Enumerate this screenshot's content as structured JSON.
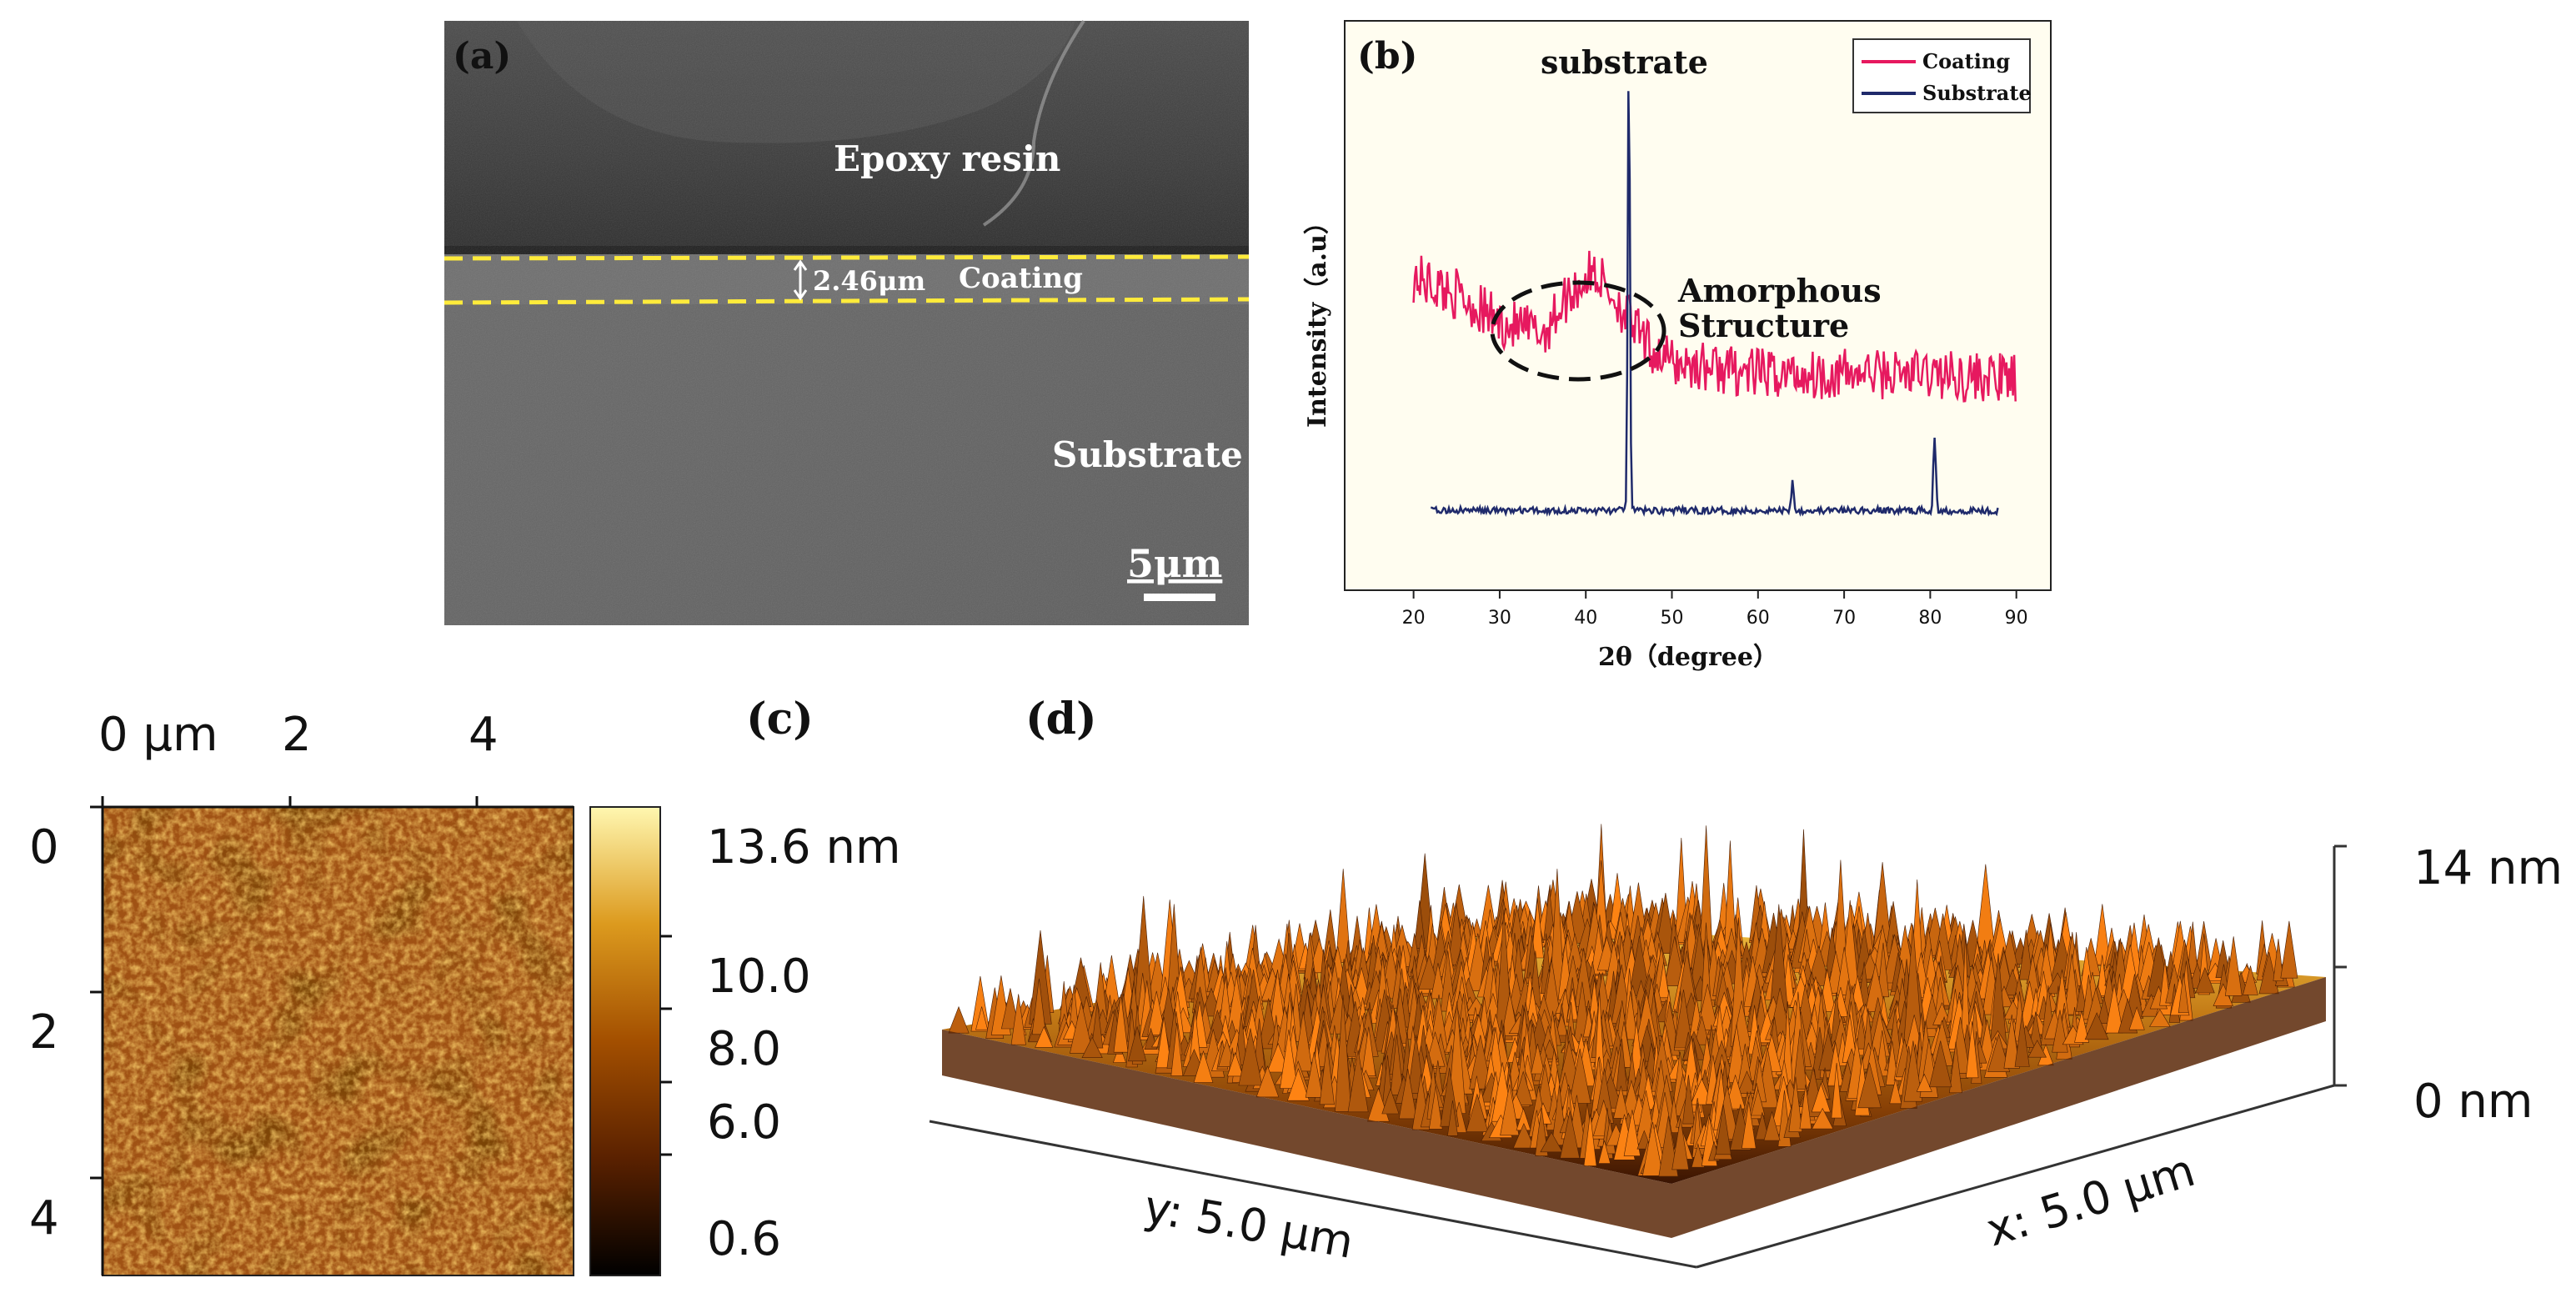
{
  "panel_a": {
    "label": "(a)",
    "epoxy_label": "Epoxy resin",
    "thickness_label": "2.46μm",
    "coating_label": "Coating",
    "substrate_label": "Substrate",
    "scale_bar_label": "5μm"
  },
  "panel_b": {
    "label": "(b)",
    "peak_label": "substrate",
    "annotation": [
      "Amorphous",
      "Structure"
    ],
    "colors": {
      "coating": "#e6195f",
      "substrate": "#1f2a6b"
    },
    "chart_data": {
      "type": "line",
      "title": "",
      "xlabel": "2θ（degree）",
      "ylabel": "Intensity（a.u）",
      "xlim": [
        12,
        94
      ],
      "ylim": [
        0,
        100
      ],
      "xticks": [
        "20",
        "30",
        "40",
        "50",
        "60",
        "70",
        "80",
        "90"
      ],
      "legend_position": "top-right",
      "series": [
        {
          "name": "Coating",
          "x": [
            20,
            25,
            30,
            35,
            38,
            41,
            44,
            47,
            50,
            60,
            70,
            80,
            90
          ],
          "values": [
            55,
            52,
            47,
            45,
            52,
            56,
            50,
            43,
            40,
            38,
            38,
            38,
            37
          ]
        },
        {
          "name": "Substrate",
          "x": [
            22,
            44.5,
            45,
            45.5,
            64,
            80.5,
            88
          ],
          "values": [
            14,
            15,
            95,
            15,
            15,
            27,
            13
          ]
        }
      ]
    }
  },
  "panel_c": {
    "label": "(c)",
    "x_ticks": [
      "0 μm",
      "2",
      "4"
    ],
    "y_ticks": [
      "0",
      "2",
      "4"
    ],
    "colorbar_ticks": [
      "13.6 nm",
      "10.0",
      "8.0",
      "6.0",
      "0.6"
    ]
  },
  "panel_d": {
    "label": "(d)",
    "z_top": "14 nm",
    "z_bottom": "0 nm",
    "y_axis_label": "y: 5.0 μm",
    "x_axis_label": "x: 5.0 μm"
  }
}
